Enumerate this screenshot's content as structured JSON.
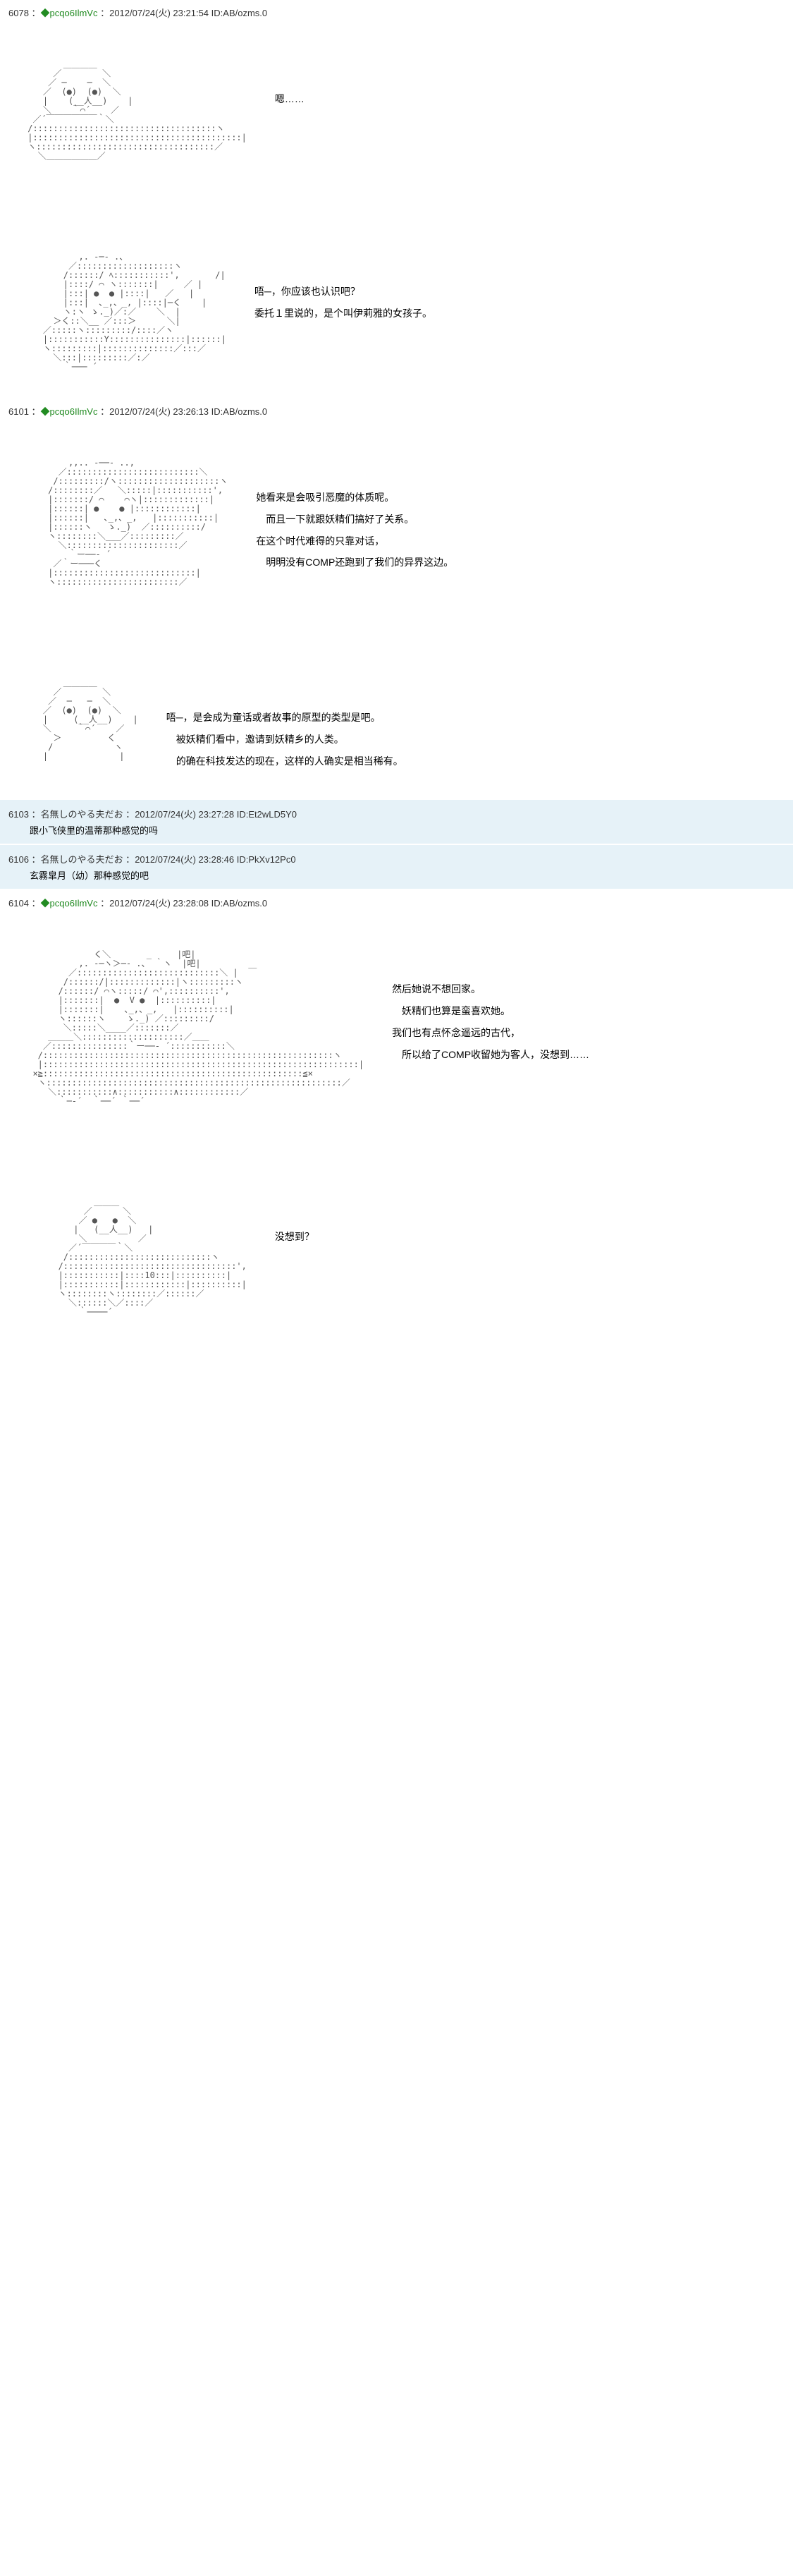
{
  "posts": [
    {
      "num": "6078",
      "trip": "◆pcqo6IlmVc",
      "date": "2012/07/24(火) 23:21:54",
      "id": "ID:AB/ozms.0",
      "sections": [
        {
          "dialogue": [
            "嗯……"
          ]
        },
        {
          "dialogue": [
            "唔─，你应该也认识吧？",
            "委托１里说的，是个叫伊莉雅的女孩子。"
          ]
        }
      ]
    },
    {
      "num": "6101",
      "trip": "◆pcqo6IlmVc",
      "date": "2012/07/24(火) 23:26:13",
      "id": "ID:AB/ozms.0",
      "sections": [
        {
          "dialogue": [
            "她看来是会吸引恶魔的体质呢。",
            "　而且一下就跟妖精们搞好了关系。",
            "",
            "在这个时代难得的只靠对话，",
            "　明明没有COMP还跑到了我们的异界这边。"
          ]
        },
        {
          "dialogue": [
            "唔─，是会成为童话或者故事的原型的类型是吧。",
            "　被妖精们看中，邀请到妖精乡的人类。",
            "　的确在科技发达的现在，这样的人确实是相当稀有。"
          ]
        }
      ]
    }
  ],
  "replies": [
    {
      "num": "6103",
      "name": "名無しのやる夫だお",
      "date": "2012/07/24(火) 23:27:28",
      "id": "ID:Et2wLD5Y0",
      "body": "跟小飞侠里的温蒂那种感觉的吗"
    },
    {
      "num": "6106",
      "name": "名無しのやる夫だお",
      "date": "2012/07/24(火) 23:28:46",
      "id": "ID:PkXv12Pc0",
      "body": "玄霧皐月（幼）那种感觉的吧"
    }
  ],
  "post3": {
    "num": "6104",
    "trip": "◆pcqo6IlmVc",
    "date": "2012/07/24(火) 23:28:08",
    "id": "ID:AB/ozms.0",
    "sections": [
      {
        "dialogue": [
          "然后她说不想回家。",
          "　妖精们也算是蛮喜欢她。",
          "",
          "我们也有点怀念遥远的古代，",
          "　所以给了COMP收留她为客人，没想到……"
        ]
      },
      {
        "dialogue": [
          "没想到？"
        ]
      }
    ]
  },
  "colors": {
    "bg": "#ffffff",
    "reply_bg": "#e6f2f8",
    "trip": "#228b22",
    "text": "#000000",
    "aa": "#555555"
  }
}
